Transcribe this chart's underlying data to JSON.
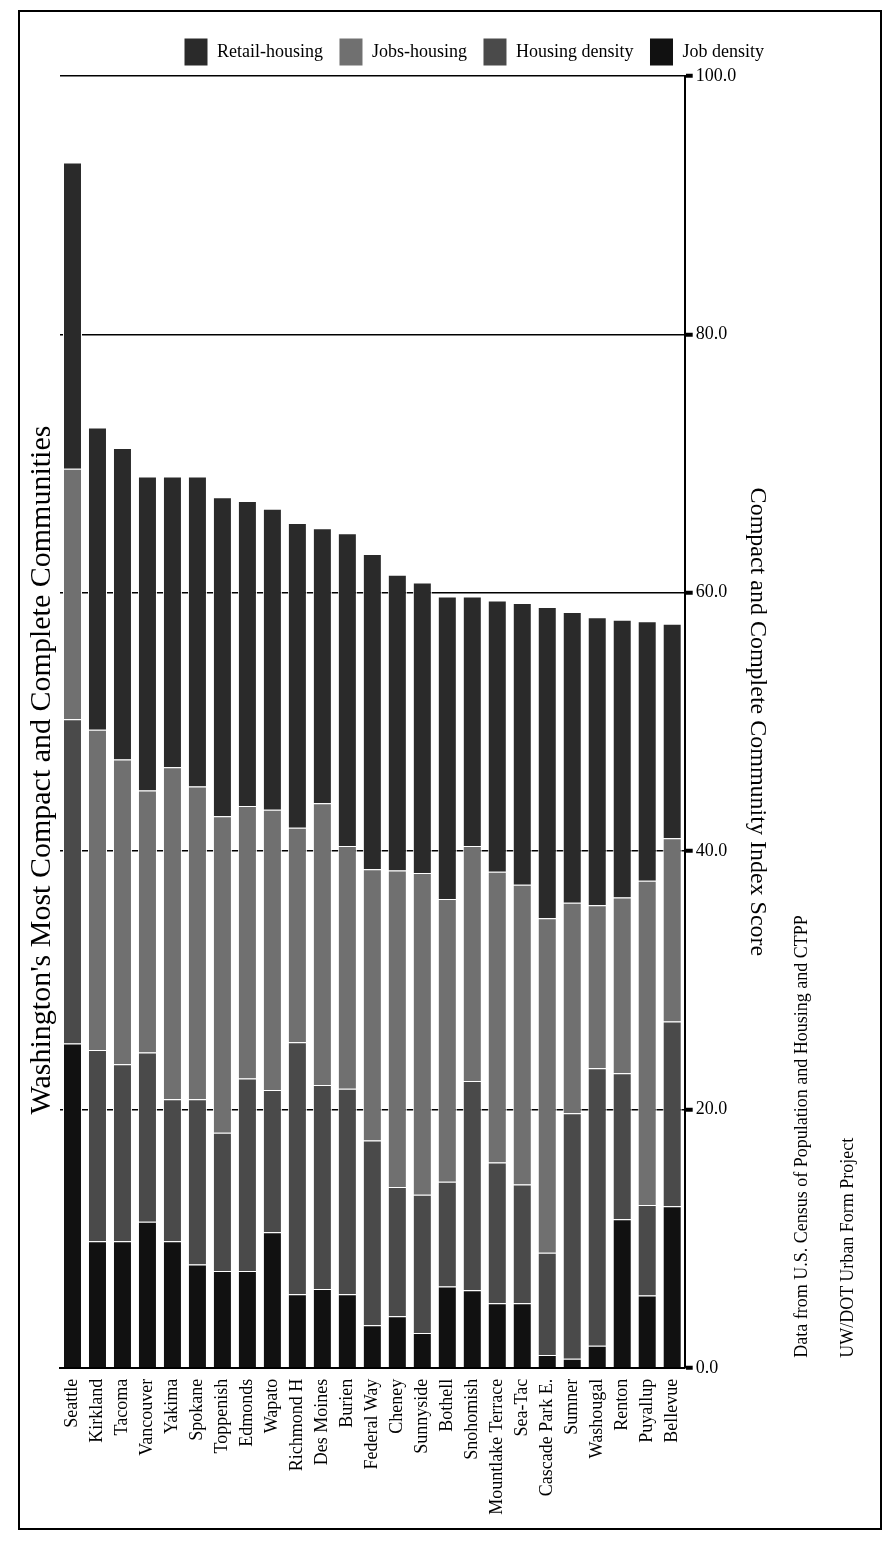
{
  "chart_data": {
    "type": "bar",
    "stacked": true,
    "title": "Washington's Most Compact and Complete Communities",
    "ylabel": "Compact and Complete Community Index Score",
    "annotations": [
      "Data from U.S. Census of Population and Housing and CTPP",
      "UW/DOT Urban Form Project"
    ],
    "categories": [
      "Seattle",
      "Kirkland",
      "Tacoma",
      "Vancouver",
      "Yakima",
      "Spokane",
      "Toppenish",
      "Edmonds",
      "Wapato",
      "Richmond H",
      "Des Moines",
      "Burien",
      "Federal Way",
      "Cheney",
      "Sunnyside",
      "Bothell",
      "Snohomish",
      "Mountlake Terrace",
      "Sea-Tac",
      "Cascade Park E.",
      "Sumner",
      "Washougal",
      "Renton",
      "Puyallup",
      "Bellevue"
    ],
    "series": [
      {
        "name": "Job density",
        "color": "#111111",
        "values": [
          25.1,
          9.8,
          9.8,
          11.3,
          9.8,
          8.0,
          7.5,
          7.5,
          10.5,
          5.7,
          6.1,
          5.7,
          3.3,
          4.0,
          2.7,
          6.3,
          6.0,
          5.0,
          5.0,
          1.0,
          0.7,
          1.7,
          11.5,
          5.6,
          12.5
        ]
      },
      {
        "name": "Housing density",
        "color": "#4a4a4a",
        "values": [
          25.1,
          14.8,
          13.7,
          13.1,
          11.0,
          12.8,
          10.7,
          14.9,
          11.0,
          19.5,
          15.8,
          15.9,
          14.3,
          10.0,
          10.7,
          8.1,
          16.2,
          10.9,
          9.2,
          7.9,
          19.0,
          21.5,
          11.3,
          7.0,
          14.3
        ]
      },
      {
        "name": "Jobs-housing",
        "color": "#707070",
        "values": [
          19.4,
          24.8,
          23.6,
          20.3,
          25.7,
          24.2,
          24.5,
          21.1,
          21.7,
          16.6,
          21.8,
          18.8,
          21.0,
          24.5,
          24.9,
          21.9,
          18.2,
          22.5,
          23.2,
          25.9,
          16.3,
          12.6,
          13.6,
          25.1,
          14.2
        ]
      },
      {
        "name": "Retail-housing",
        "color": "#2a2a2a",
        "values": [
          23.7,
          23.4,
          24.1,
          24.3,
          22.5,
          24.0,
          24.7,
          23.6,
          23.3,
          23.6,
          21.3,
          24.2,
          24.4,
          22.9,
          22.5,
          23.4,
          19.3,
          21.0,
          21.8,
          24.1,
          22.5,
          22.3,
          21.5,
          20.1,
          16.6
        ]
      }
    ],
    "ylim": [
      0,
      100
    ],
    "yticks": [
      {
        "value": 0,
        "label": "0.0"
      },
      {
        "value": 20,
        "label": "20.0"
      },
      {
        "value": 40,
        "label": "40.0"
      },
      {
        "value": 60,
        "label": "60.0"
      },
      {
        "value": 80,
        "label": "80.0"
      },
      {
        "value": 100,
        "label": "100.0"
      }
    ],
    "grid": "y",
    "legend": "top right"
  }
}
